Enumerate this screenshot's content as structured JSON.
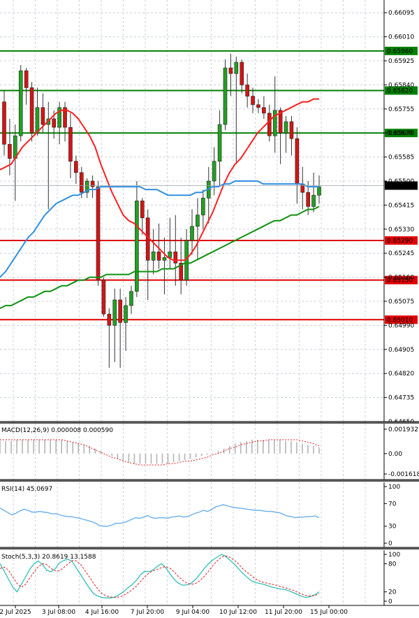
{
  "chart_data": [
    {
      "type": "candlestick",
      "panel": "price",
      "ylim": [
        0.6465,
        0.6614
      ],
      "y_ticks": [
        "0.66095",
        "0.66010",
        "0.65925",
        "0.65840",
        "0.65755",
        "0.65670",
        "0.65585",
        "0.65500",
        "0.65415",
        "0.65330",
        "0.65245",
        "0.65160",
        "0.65075",
        "0.64990",
        "0.64905",
        "0.64820",
        "0.64735",
        "0.64650"
      ],
      "current_price": "0.65484",
      "horizontal_levels": [
        {
          "value": "0.65960",
          "color": "#008000"
        },
        {
          "value": "0.65820",
          "color": "#008000"
        },
        {
          "value": "0.65670",
          "color": "#008000"
        },
        {
          "value": "0.65290",
          "color": "#e00000"
        },
        {
          "value": "0.65150",
          "color": "#e00000"
        },
        {
          "value": "0.65010",
          "color": "#e00000"
        }
      ],
      "x_labels": [
        "2 Jul 2025",
        "3 Jul 08:00",
        "4 Jul 16:00",
        "7 Jul 20:00",
        "9 Jul 04:00",
        "10 Jul 12:00",
        "11 Jul 20:00",
        "15 Jul 00:00"
      ],
      "candles": [
        {
          "o": 0.6578,
          "h": 0.6582,
          "l": 0.6559,
          "c": 0.6563
        },
        {
          "o": 0.6563,
          "h": 0.6572,
          "l": 0.6552,
          "c": 0.6558
        },
        {
          "o": 0.6558,
          "h": 0.657,
          "l": 0.6543,
          "c": 0.6566
        },
        {
          "o": 0.6566,
          "h": 0.6591,
          "l": 0.6564,
          "c": 0.6589
        },
        {
          "o": 0.6589,
          "h": 0.659,
          "l": 0.6577,
          "c": 0.6583
        },
        {
          "o": 0.6583,
          "h": 0.6585,
          "l": 0.6564,
          "c": 0.6567
        },
        {
          "o": 0.6567,
          "h": 0.6583,
          "l": 0.6566,
          "c": 0.6576
        },
        {
          "o": 0.6576,
          "h": 0.6581,
          "l": 0.6567,
          "c": 0.657
        },
        {
          "o": 0.657,
          "h": 0.6578,
          "l": 0.654,
          "c": 0.6572
        },
        {
          "o": 0.6572,
          "h": 0.6575,
          "l": 0.6565,
          "c": 0.6569
        },
        {
          "o": 0.6569,
          "h": 0.6578,
          "l": 0.6563,
          "c": 0.6576
        },
        {
          "o": 0.6576,
          "h": 0.6578,
          "l": 0.6564,
          "c": 0.6569
        },
        {
          "o": 0.6569,
          "h": 0.6574,
          "l": 0.6551,
          "c": 0.6557
        },
        {
          "o": 0.6557,
          "h": 0.6559,
          "l": 0.6549,
          "c": 0.6553
        },
        {
          "o": 0.6553,
          "h": 0.6555,
          "l": 0.6544,
          "c": 0.6546
        },
        {
          "o": 0.6546,
          "h": 0.6551,
          "l": 0.6544,
          "c": 0.655
        },
        {
          "o": 0.655,
          "h": 0.6552,
          "l": 0.6544,
          "c": 0.6548
        },
        {
          "o": 0.6548,
          "h": 0.655,
          "l": 0.6513,
          "c": 0.6515
        },
        {
          "o": 0.6515,
          "h": 0.6516,
          "l": 0.6502,
          "c": 0.6503
        },
        {
          "o": 0.6503,
          "h": 0.6505,
          "l": 0.6484,
          "c": 0.6499
        },
        {
          "o": 0.6499,
          "h": 0.6512,
          "l": 0.6486,
          "c": 0.6508
        },
        {
          "o": 0.6508,
          "h": 0.6512,
          "l": 0.6484,
          "c": 0.65
        },
        {
          "o": 0.65,
          "h": 0.6509,
          "l": 0.649,
          "c": 0.6506
        },
        {
          "o": 0.6506,
          "h": 0.6513,
          "l": 0.6503,
          "c": 0.6511
        },
        {
          "o": 0.6511,
          "h": 0.655,
          "l": 0.6509,
          "c": 0.6543
        },
        {
          "o": 0.6543,
          "h": 0.6544,
          "l": 0.6531,
          "c": 0.6537
        },
        {
          "o": 0.6537,
          "h": 0.654,
          "l": 0.6508,
          "c": 0.6522
        },
        {
          "o": 0.6522,
          "h": 0.6533,
          "l": 0.6517,
          "c": 0.6525
        },
        {
          "o": 0.6525,
          "h": 0.6535,
          "l": 0.6519,
          "c": 0.6522
        },
        {
          "o": 0.6522,
          "h": 0.653,
          "l": 0.651,
          "c": 0.6523
        },
        {
          "o": 0.6523,
          "h": 0.6537,
          "l": 0.6519,
          "c": 0.6525
        },
        {
          "o": 0.6525,
          "h": 0.6538,
          "l": 0.6513,
          "c": 0.6521
        },
        {
          "o": 0.6521,
          "h": 0.653,
          "l": 0.651,
          "c": 0.6515
        },
        {
          "o": 0.6515,
          "h": 0.6533,
          "l": 0.6513,
          "c": 0.6529
        },
        {
          "o": 0.6529,
          "h": 0.654,
          "l": 0.6524,
          "c": 0.6534
        },
        {
          "o": 0.6534,
          "h": 0.6544,
          "l": 0.6522,
          "c": 0.6538
        },
        {
          "o": 0.6538,
          "h": 0.6547,
          "l": 0.6533,
          "c": 0.6544
        },
        {
          "o": 0.6544,
          "h": 0.6555,
          "l": 0.6535,
          "c": 0.655
        },
        {
          "o": 0.655,
          "h": 0.6562,
          "l": 0.6545,
          "c": 0.6557
        },
        {
          "o": 0.6557,
          "h": 0.6575,
          "l": 0.6548,
          "c": 0.657
        },
        {
          "o": 0.657,
          "h": 0.6593,
          "l": 0.6568,
          "c": 0.659
        },
        {
          "o": 0.659,
          "h": 0.6595,
          "l": 0.658,
          "c": 0.6588
        },
        {
          "o": 0.6588,
          "h": 0.6594,
          "l": 0.6556,
          "c": 0.6592
        },
        {
          "o": 0.6592,
          "h": 0.6593,
          "l": 0.6581,
          "c": 0.6584
        },
        {
          "o": 0.6584,
          "h": 0.6588,
          "l": 0.6576,
          "c": 0.658
        },
        {
          "o": 0.658,
          "h": 0.6583,
          "l": 0.6574,
          "c": 0.6577
        },
        {
          "o": 0.6577,
          "h": 0.6579,
          "l": 0.6574,
          "c": 0.6576
        },
        {
          "o": 0.6576,
          "h": 0.658,
          "l": 0.6572,
          "c": 0.6574
        },
        {
          "o": 0.6574,
          "h": 0.6577,
          "l": 0.6564,
          "c": 0.6566
        },
        {
          "o": 0.6566,
          "h": 0.6587,
          "l": 0.656,
          "c": 0.6575
        },
        {
          "o": 0.6575,
          "h": 0.6576,
          "l": 0.6556,
          "c": 0.6567
        },
        {
          "o": 0.6567,
          "h": 0.6573,
          "l": 0.656,
          "c": 0.6571
        },
        {
          "o": 0.6571,
          "h": 0.6573,
          "l": 0.6559,
          "c": 0.6565
        },
        {
          "o": 0.6565,
          "h": 0.6569,
          "l": 0.6542,
          "c": 0.6549
        },
        {
          "o": 0.6549,
          "h": 0.6555,
          "l": 0.654,
          "c": 0.6546
        },
        {
          "o": 0.6546,
          "h": 0.655,
          "l": 0.6538,
          "c": 0.6541
        },
        {
          "o": 0.6541,
          "h": 0.6553,
          "l": 0.6539,
          "c": 0.6545
        },
        {
          "o": 0.6545,
          "h": 0.6552,
          "l": 0.6542,
          "c": 0.6548
        }
      ],
      "moving_averages": [
        {
          "color": "#ff2020",
          "values": [
            0.6554,
            0.6555,
            0.6556,
            0.6559,
            0.6562,
            0.6564,
            0.6566,
            0.6568,
            0.657,
            0.6572,
            0.6574,
            0.6575,
            0.6575,
            0.6574,
            0.6572,
            0.6569,
            0.6566,
            0.6562,
            0.6556,
            0.6551,
            0.6546,
            0.6542,
            0.6538,
            0.6536,
            0.6535,
            0.6533,
            0.6531,
            0.6529,
            0.6527,
            0.6525,
            0.6523,
            0.6522,
            0.6522,
            0.6522,
            0.6524,
            0.6527,
            0.6531,
            0.6535,
            0.6539,
            0.6544,
            0.6549,
            0.6553,
            0.6556,
            0.6558,
            0.6561,
            0.6564,
            0.6567,
            0.6569,
            0.6571,
            0.6573,
            0.6574,
            0.6575,
            0.6576,
            0.6577,
            0.6578,
            0.6578,
            0.6579,
            0.6579
          ]
        },
        {
          "color": "#3090e0",
          "values": [
            0.6516,
            0.6518,
            0.6521,
            0.6524,
            0.6527,
            0.653,
            0.6532,
            0.6535,
            0.6538,
            0.654,
            0.6542,
            0.6543,
            0.6544,
            0.6545,
            0.6545,
            0.6546,
            0.6547,
            0.6547,
            0.6548,
            0.6548,
            0.6548,
            0.6548,
            0.6548,
            0.6548,
            0.6548,
            0.6548,
            0.6547,
            0.6547,
            0.6547,
            0.6546,
            0.6545,
            0.6545,
            0.6545,
            0.6545,
            0.6545,
            0.6546,
            0.6546,
            0.6547,
            0.6548,
            0.6548,
            0.6549,
            0.6549,
            0.655,
            0.655,
            0.655,
            0.655,
            0.655,
            0.6549,
            0.6549,
            0.6549,
            0.6549,
            0.6549,
            0.6549,
            0.6549,
            0.6549,
            0.6548,
            0.6548,
            0.6548
          ]
        },
        {
          "color": "#109010",
          "values": [
            0.6505,
            0.6506,
            0.6506,
            0.6507,
            0.6508,
            0.6509,
            0.6509,
            0.651,
            0.6511,
            0.6511,
            0.6512,
            0.6513,
            0.6513,
            0.6514,
            0.6515,
            0.6515,
            0.6516,
            0.6516,
            0.6516,
            0.6517,
            0.6517,
            0.6517,
            0.6517,
            0.6517,
            0.6518,
            0.6518,
            0.6518,
            0.6518,
            0.6518,
            0.6519,
            0.6519,
            0.6519,
            0.652,
            0.6521,
            0.6521,
            0.6522,
            0.6523,
            0.6524,
            0.6525,
            0.6526,
            0.6527,
            0.6528,
            0.6529,
            0.653,
            0.6531,
            0.6532,
            0.6533,
            0.6534,
            0.6535,
            0.6536,
            0.6536,
            0.6537,
            0.6538,
            0.6538,
            0.6539,
            0.654,
            0.654,
            0.6541
          ]
        }
      ]
    },
    {
      "type": "bar",
      "panel": "MACD",
      "label": "MACD(12,26,9) 0.000008 0.000590",
      "y_ticks": [
        "0.001932",
        "0.00",
        "-0.001618"
      ],
      "ylim": [
        -0.001618,
        0.001932
      ],
      "histogram": [
        0.001,
        0.001,
        0.001,
        0.0011,
        0.0011,
        0.0011,
        0.0011,
        0.0011,
        0.0011,
        0.0011,
        0.0011,
        0.0011,
        0.001,
        0.0009,
        0.0008,
        0.0007,
        0.0006,
        0.0004,
        0.0002,
        0.0,
        -0.0002,
        -0.0004,
        -0.0006,
        -0.0007,
        -0.0008,
        -0.0008,
        -0.0008,
        -0.0008,
        -0.0008,
        -0.0008,
        -0.0008,
        -0.0007,
        -0.0006,
        -0.0005,
        -0.0004,
        -0.0003,
        -0.0002,
        -0.0001,
        0.0,
        0.0002,
        0.0004,
        0.0006,
        0.0008,
        0.0009,
        0.001,
        0.0011,
        0.0011,
        0.0011,
        0.0011,
        0.0011,
        0.0011,
        0.001,
        0.001,
        0.0009,
        0.0008,
        0.0007,
        0.0006,
        0.0005
      ],
      "signal": [
        0.0011,
        0.0011,
        0.0011,
        0.0011,
        0.0011,
        0.0011,
        0.0011,
        0.0011,
        0.0011,
        0.0011,
        0.0011,
        0.0011,
        0.001,
        0.0009,
        0.0008,
        0.0007,
        0.0005,
        0.0003,
        0.0001,
        -0.0001,
        -0.0003,
        -0.0004,
        -0.0006,
        -0.0007,
        -0.0008,
        -0.0009,
        -0.0009,
        -0.0009,
        -0.0009,
        -0.0009,
        -0.0008,
        -0.0008,
        -0.0007,
        -0.0006,
        -0.0006,
        -0.0005,
        -0.0004,
        -0.0003,
        -0.0001,
        0.0,
        0.0002,
        0.0004,
        0.0005,
        0.0007,
        0.0008,
        0.0009,
        0.001,
        0.001,
        0.0011,
        0.0011,
        0.0011,
        0.0011,
        0.0011,
        0.0011,
        0.001,
        0.0009,
        0.0008,
        0.0006
      ]
    },
    {
      "type": "line",
      "panel": "RSI",
      "label": "RSI(14) 45.0697",
      "y_ticks": [
        "100",
        "70",
        "30",
        "0"
      ],
      "ylim": [
        0,
        100
      ],
      "values": [
        62,
        58,
        54,
        50,
        53,
        57,
        60,
        58,
        55,
        55,
        56,
        55,
        54,
        52,
        52,
        50,
        48,
        47,
        47,
        45,
        44,
        42,
        40,
        38,
        35,
        31,
        30,
        30,
        32,
        35,
        35,
        36,
        39,
        42,
        45,
        44,
        46,
        49,
        45,
        44,
        45,
        45,
        44,
        46,
        47,
        48,
        46,
        47,
        50,
        53,
        55,
        58,
        56,
        59,
        64,
        66,
        68,
        66,
        64,
        63,
        62,
        61,
        60,
        59,
        58,
        58,
        57,
        56,
        56,
        55,
        54,
        51,
        48,
        47,
        45,
        46,
        46,
        47,
        47,
        48,
        45
      ]
    },
    {
      "type": "line",
      "panel": "Stoch",
      "label": "Stoch(5,3,3) 20.8619 13.1588",
      "y_ticks": [
        "100",
        "80",
        "20",
        "0"
      ],
      "ylim": [
        0,
        100
      ],
      "k": [
        80,
        64,
        47,
        30,
        20,
        36,
        52,
        68,
        80,
        86,
        78,
        66,
        63,
        70,
        82,
        87,
        90,
        84,
        70,
        56,
        42,
        28,
        16,
        11,
        8,
        7,
        7,
        9,
        14,
        20,
        28,
        35,
        44,
        56,
        64,
        63,
        67,
        75,
        80,
        71,
        58,
        46,
        38,
        34,
        35,
        39,
        47,
        58,
        70,
        80,
        88,
        94,
        100,
        96,
        88,
        80,
        70,
        60,
        52,
        44,
        40,
        38,
        36,
        33,
        30,
        28,
        26,
        25,
        22,
        18,
        14,
        10,
        8,
        10,
        14,
        20
      ],
      "d": [
        70,
        73,
        66,
        52,
        38,
        30,
        36,
        50,
        62,
        74,
        80,
        78,
        70,
        65,
        65,
        72,
        80,
        87,
        86,
        78,
        65,
        52,
        38,
        26,
        16,
        11,
        9,
        8,
        9,
        12,
        18,
        24,
        32,
        42,
        52,
        60,
        65,
        68,
        72,
        74,
        70,
        62,
        52,
        44,
        38,
        36,
        38,
        44,
        53,
        64,
        76,
        86,
        94,
        97,
        94,
        88,
        80,
        70,
        62,
        55,
        48,
        43,
        40,
        38,
        36,
        34,
        31,
        29,
        26,
        23,
        19,
        15,
        12,
        11,
        12,
        16
      ]
    }
  ]
}
